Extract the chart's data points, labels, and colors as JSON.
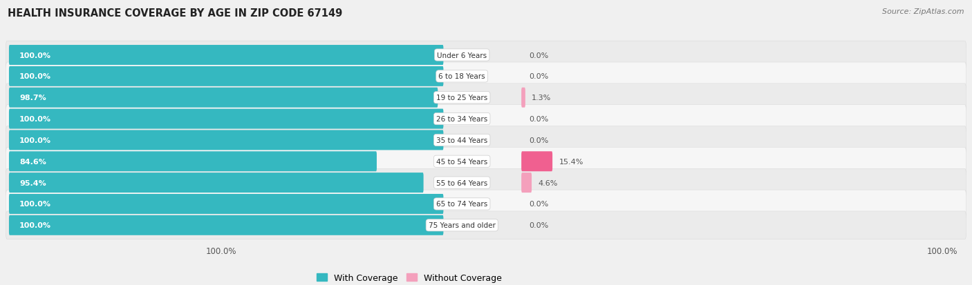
{
  "title": "HEALTH INSURANCE COVERAGE BY AGE IN ZIP CODE 67149",
  "source": "Source: ZipAtlas.com",
  "categories": [
    "Under 6 Years",
    "6 to 18 Years",
    "19 to 25 Years",
    "26 to 34 Years",
    "35 to 44 Years",
    "45 to 54 Years",
    "55 to 64 Years",
    "65 to 74 Years",
    "75 Years and older"
  ],
  "with_coverage": [
    100.0,
    100.0,
    98.7,
    100.0,
    100.0,
    84.6,
    95.4,
    100.0,
    100.0
  ],
  "without_coverage": [
    0.0,
    0.0,
    1.3,
    0.0,
    0.0,
    15.4,
    4.6,
    0.0,
    0.0
  ],
  "color_with": "#35b8c0",
  "color_without_small": "#f4a0bc",
  "color_without_large": "#f06090",
  "bg_color": "#f0f0f0",
  "row_bg_light": "#f8f8f8",
  "row_bg_dark": "#e8e8e8",
  "title_fontsize": 10.5,
  "label_fontsize": 8.0,
  "tick_fontsize": 8.5,
  "legend_fontsize": 9,
  "source_fontsize": 8
}
